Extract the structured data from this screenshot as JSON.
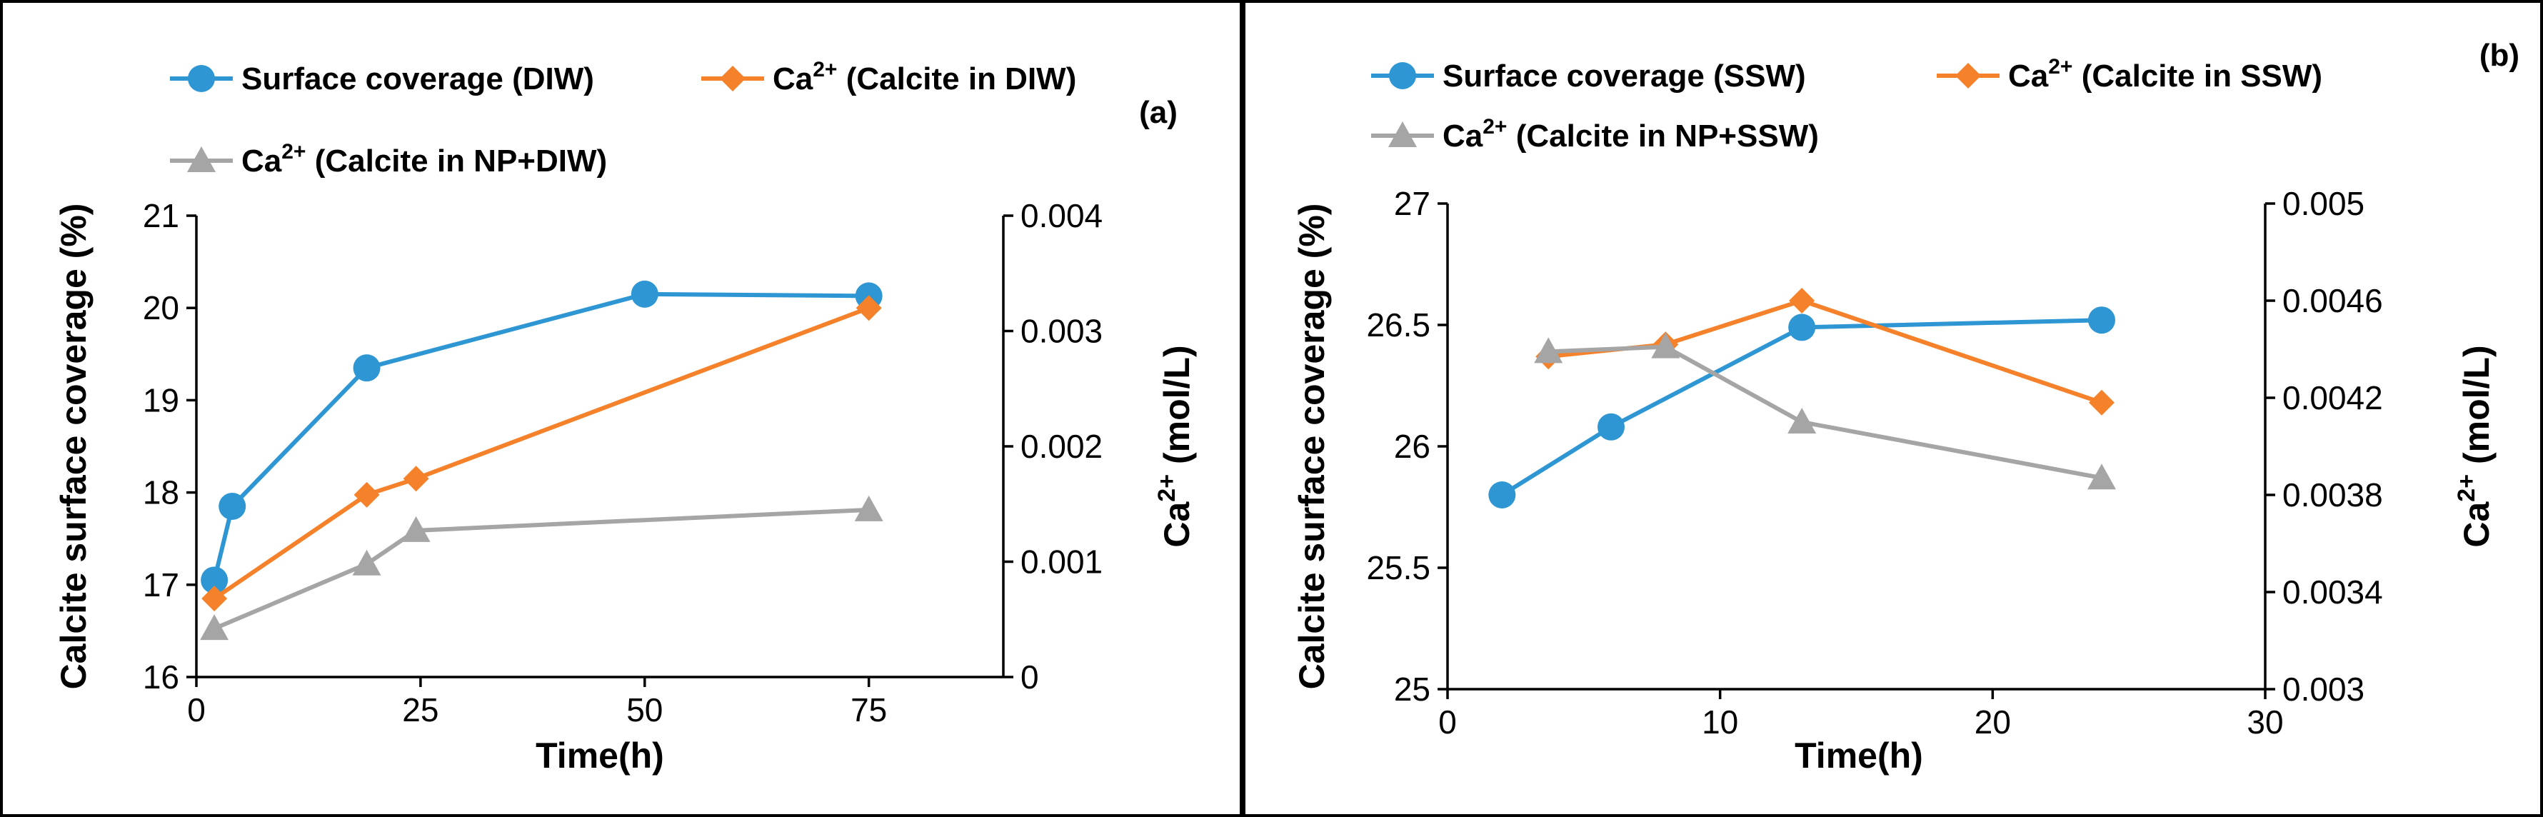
{
  "chart_data": [
    {
      "id": "a",
      "type": "line",
      "panel_label": "(a)",
      "xlabel": "Time(h)",
      "ylabel": "Calcite surface coverage (%)",
      "y2label_main": "Ca",
      "y2label_sup": "2+",
      "y2label_rest": " (mol/L)",
      "xlim": [
        0,
        90
      ],
      "ylim": [
        16,
        21
      ],
      "y2lim": [
        0,
        0.004
      ],
      "xticks": [
        0,
        25,
        50,
        75
      ],
      "xtick_labels": [
        "0",
        "25",
        "50",
        "75"
      ],
      "yticks": [
        16,
        17,
        18,
        19,
        20,
        21
      ],
      "ytick_labels": [
        "16",
        "17",
        "18",
        "19",
        "20",
        "21"
      ],
      "y2ticks": [
        0,
        0.001,
        0.002,
        0.003,
        0.004
      ],
      "y2tick_labels": [
        "0",
        "0.001",
        "0.002",
        "0.003",
        "0.004"
      ],
      "series": [
        {
          "name_main": "Surface coverage (DIW)",
          "name_sup": "",
          "name_rest": "",
          "axis": "left",
          "marker": "circle",
          "color": "#2f96d4",
          "x": [
            2,
            4,
            19,
            50,
            75
          ],
          "y": [
            17.05,
            17.85,
            19.35,
            20.15,
            20.13
          ]
        },
        {
          "name_main": "Ca",
          "name_sup": "2+",
          "name_rest": " (Calcite in DIW)",
          "axis": "right",
          "marker": "diamond",
          "color": "#f5822a",
          "x": [
            2,
            19,
            24.5,
            75
          ],
          "y": [
            0.00068,
            0.00158,
            0.00172,
            0.0032
          ]
        },
        {
          "name_main": "Ca",
          "name_sup": "2+",
          "name_rest": " (Calcite in NP+DIW)",
          "axis": "right",
          "marker": "triangle",
          "color": "#a5a5a5",
          "x": [
            2,
            19,
            24.5,
            75
          ],
          "y": [
            0.00042,
            0.00098,
            0.00127,
            0.00145
          ]
        }
      ]
    },
    {
      "id": "b",
      "type": "line",
      "panel_label": "(b)",
      "xlabel": "Time(h)",
      "ylabel": "Calcite surface coverage (%)",
      "y2label_main": "Ca",
      "y2label_sup": "2+",
      "y2label_rest": " (mol/L)",
      "xlim": [
        0,
        30
      ],
      "ylim": [
        25,
        27
      ],
      "y2lim": [
        0.003,
        0.005
      ],
      "xticks": [
        0,
        10,
        20,
        30
      ],
      "xtick_labels": [
        "0",
        "10",
        "20",
        "30"
      ],
      "yticks": [
        25,
        25.5,
        26,
        26.5,
        27
      ],
      "ytick_labels": [
        "25",
        "25.5",
        "26",
        "26.5",
        "27"
      ],
      "y2ticks": [
        0.003,
        0.0034,
        0.0038,
        0.0042,
        0.0046,
        0.005
      ],
      "y2tick_labels": [
        "0.003",
        "0.0034",
        "0.0038",
        "0.0042",
        "0.0046",
        "0.005"
      ],
      "series": [
        {
          "name_main": "Surface coverage (SSW)",
          "name_sup": "",
          "name_rest": "",
          "axis": "left",
          "marker": "circle",
          "color": "#2f96d4",
          "x": [
            2,
            6,
            13,
            24
          ],
          "y": [
            25.8,
            26.08,
            26.49,
            26.52
          ]
        },
        {
          "name_main": "Ca",
          "name_sup": "2+",
          "name_rest": " (Calcite in SSW)",
          "axis": "right",
          "marker": "diamond",
          "color": "#f5822a",
          "x": [
            3.7,
            8,
            13,
            24
          ],
          "y": [
            0.00437,
            0.00442,
            0.0046,
            0.00418
          ]
        },
        {
          "name_main": "Ca",
          "name_sup": "2+",
          "name_rest": " (Calcite in NP+SSW)",
          "axis": "right",
          "marker": "triangle",
          "color": "#a5a5a5",
          "x": [
            3.7,
            8,
            13,
            24
          ],
          "y": [
            0.00439,
            0.00441,
            0.0041,
            0.00387
          ]
        }
      ]
    }
  ]
}
